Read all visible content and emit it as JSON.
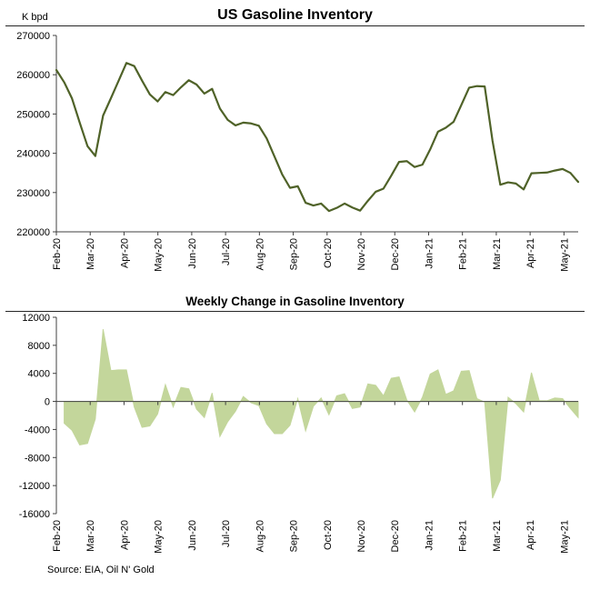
{
  "page": {
    "source_note": "Source: EIA, Oil N' Gold"
  },
  "chart_data": [
    {
      "type": "line",
      "title": "US Gasoline Inventory",
      "unit_label": "K bpd",
      "series_color": "#4f6228",
      "ylim": [
        220000,
        270000
      ],
      "y_ticks": [
        220000,
        230000,
        240000,
        250000,
        260000,
        270000
      ],
      "x_tick_labels": [
        "Feb-20",
        "Mar-20",
        "Apr-20",
        "May-20",
        "Jun-20",
        "Jul-20",
        "Aug-20",
        "Sep-20",
        "Oct-20",
        "Nov-20",
        "Dec-20",
        "Jan-21",
        "Feb-21",
        "Mar-21",
        "Apr-21",
        "May-21"
      ],
      "weeks_per_month": 4.345,
      "grid": false,
      "legend": false,
      "xlabel": "",
      "ylabel": "K bpd",
      "values": [
        261200,
        258100,
        254000,
        247800,
        241800,
        239300,
        249600,
        254000,
        258500,
        263000,
        262200,
        258500,
        255000,
        253200,
        255600,
        254800,
        256800,
        258600,
        257500,
        255200,
        256400,
        251400,
        248500,
        247100,
        247800,
        247600,
        247000,
        243800,
        239200,
        234600,
        231200,
        231600,
        227400,
        226700,
        227200,
        225300,
        226100,
        227200,
        226200,
        225400,
        227900,
        230200,
        231000,
        234300,
        237800,
        238000,
        236500,
        237100,
        241000,
        245500,
        246500,
        248000,
        252300,
        256700,
        257100,
        257000,
        243200,
        232000,
        232600,
        232300,
        230800,
        234900,
        235000,
        235100,
        235600,
        236000,
        235000,
        232700
      ]
    },
    {
      "type": "area",
      "title": "Weekly Change in Gasoline Inventory",
      "fill_color": "#c3d69b",
      "ylim": [
        -16000,
        12000
      ],
      "y_ticks": [
        -16000,
        -12000,
        -8000,
        -4000,
        0,
        4000,
        8000,
        12000
      ],
      "x_tick_labels": [
        "Feb-20",
        "Mar-20",
        "Apr-20",
        "May-20",
        "Jun-20",
        "Jul-20",
        "Aug-20",
        "Sep-20",
        "Oct-20",
        "Nov-20",
        "Dec-20",
        "Jan-21",
        "Feb-21",
        "Mar-21",
        "Apr-21",
        "May-21"
      ],
      "weeks_per_month": 4.345,
      "grid": false,
      "legend": false,
      "xlabel": "",
      "ylabel": "",
      "values": [
        -3100,
        -4100,
        -6200,
        -6000,
        -2500,
        10300,
        4400,
        4500,
        4500,
        -800,
        -3700,
        -3500,
        -1800,
        2400,
        -800,
        2000,
        1800,
        -1100,
        -2300,
        1200,
        -5000,
        -2900,
        -1400,
        700,
        -200,
        -600,
        -3200,
        -4600,
        -4600,
        -3400,
        400,
        -4200,
        -700,
        500,
        -1900,
        800,
        1100,
        -1000,
        -800,
        2500,
        2300,
        800,
        3300,
        3500,
        200,
        -1500,
        600,
        3900,
        4500,
        1000,
        1500,
        4300,
        4400,
        400,
        -100,
        -13800,
        -11200,
        600,
        -300,
        -1500,
        4100,
        100,
        100,
        500,
        400,
        -1000,
        -2300
      ]
    }
  ]
}
